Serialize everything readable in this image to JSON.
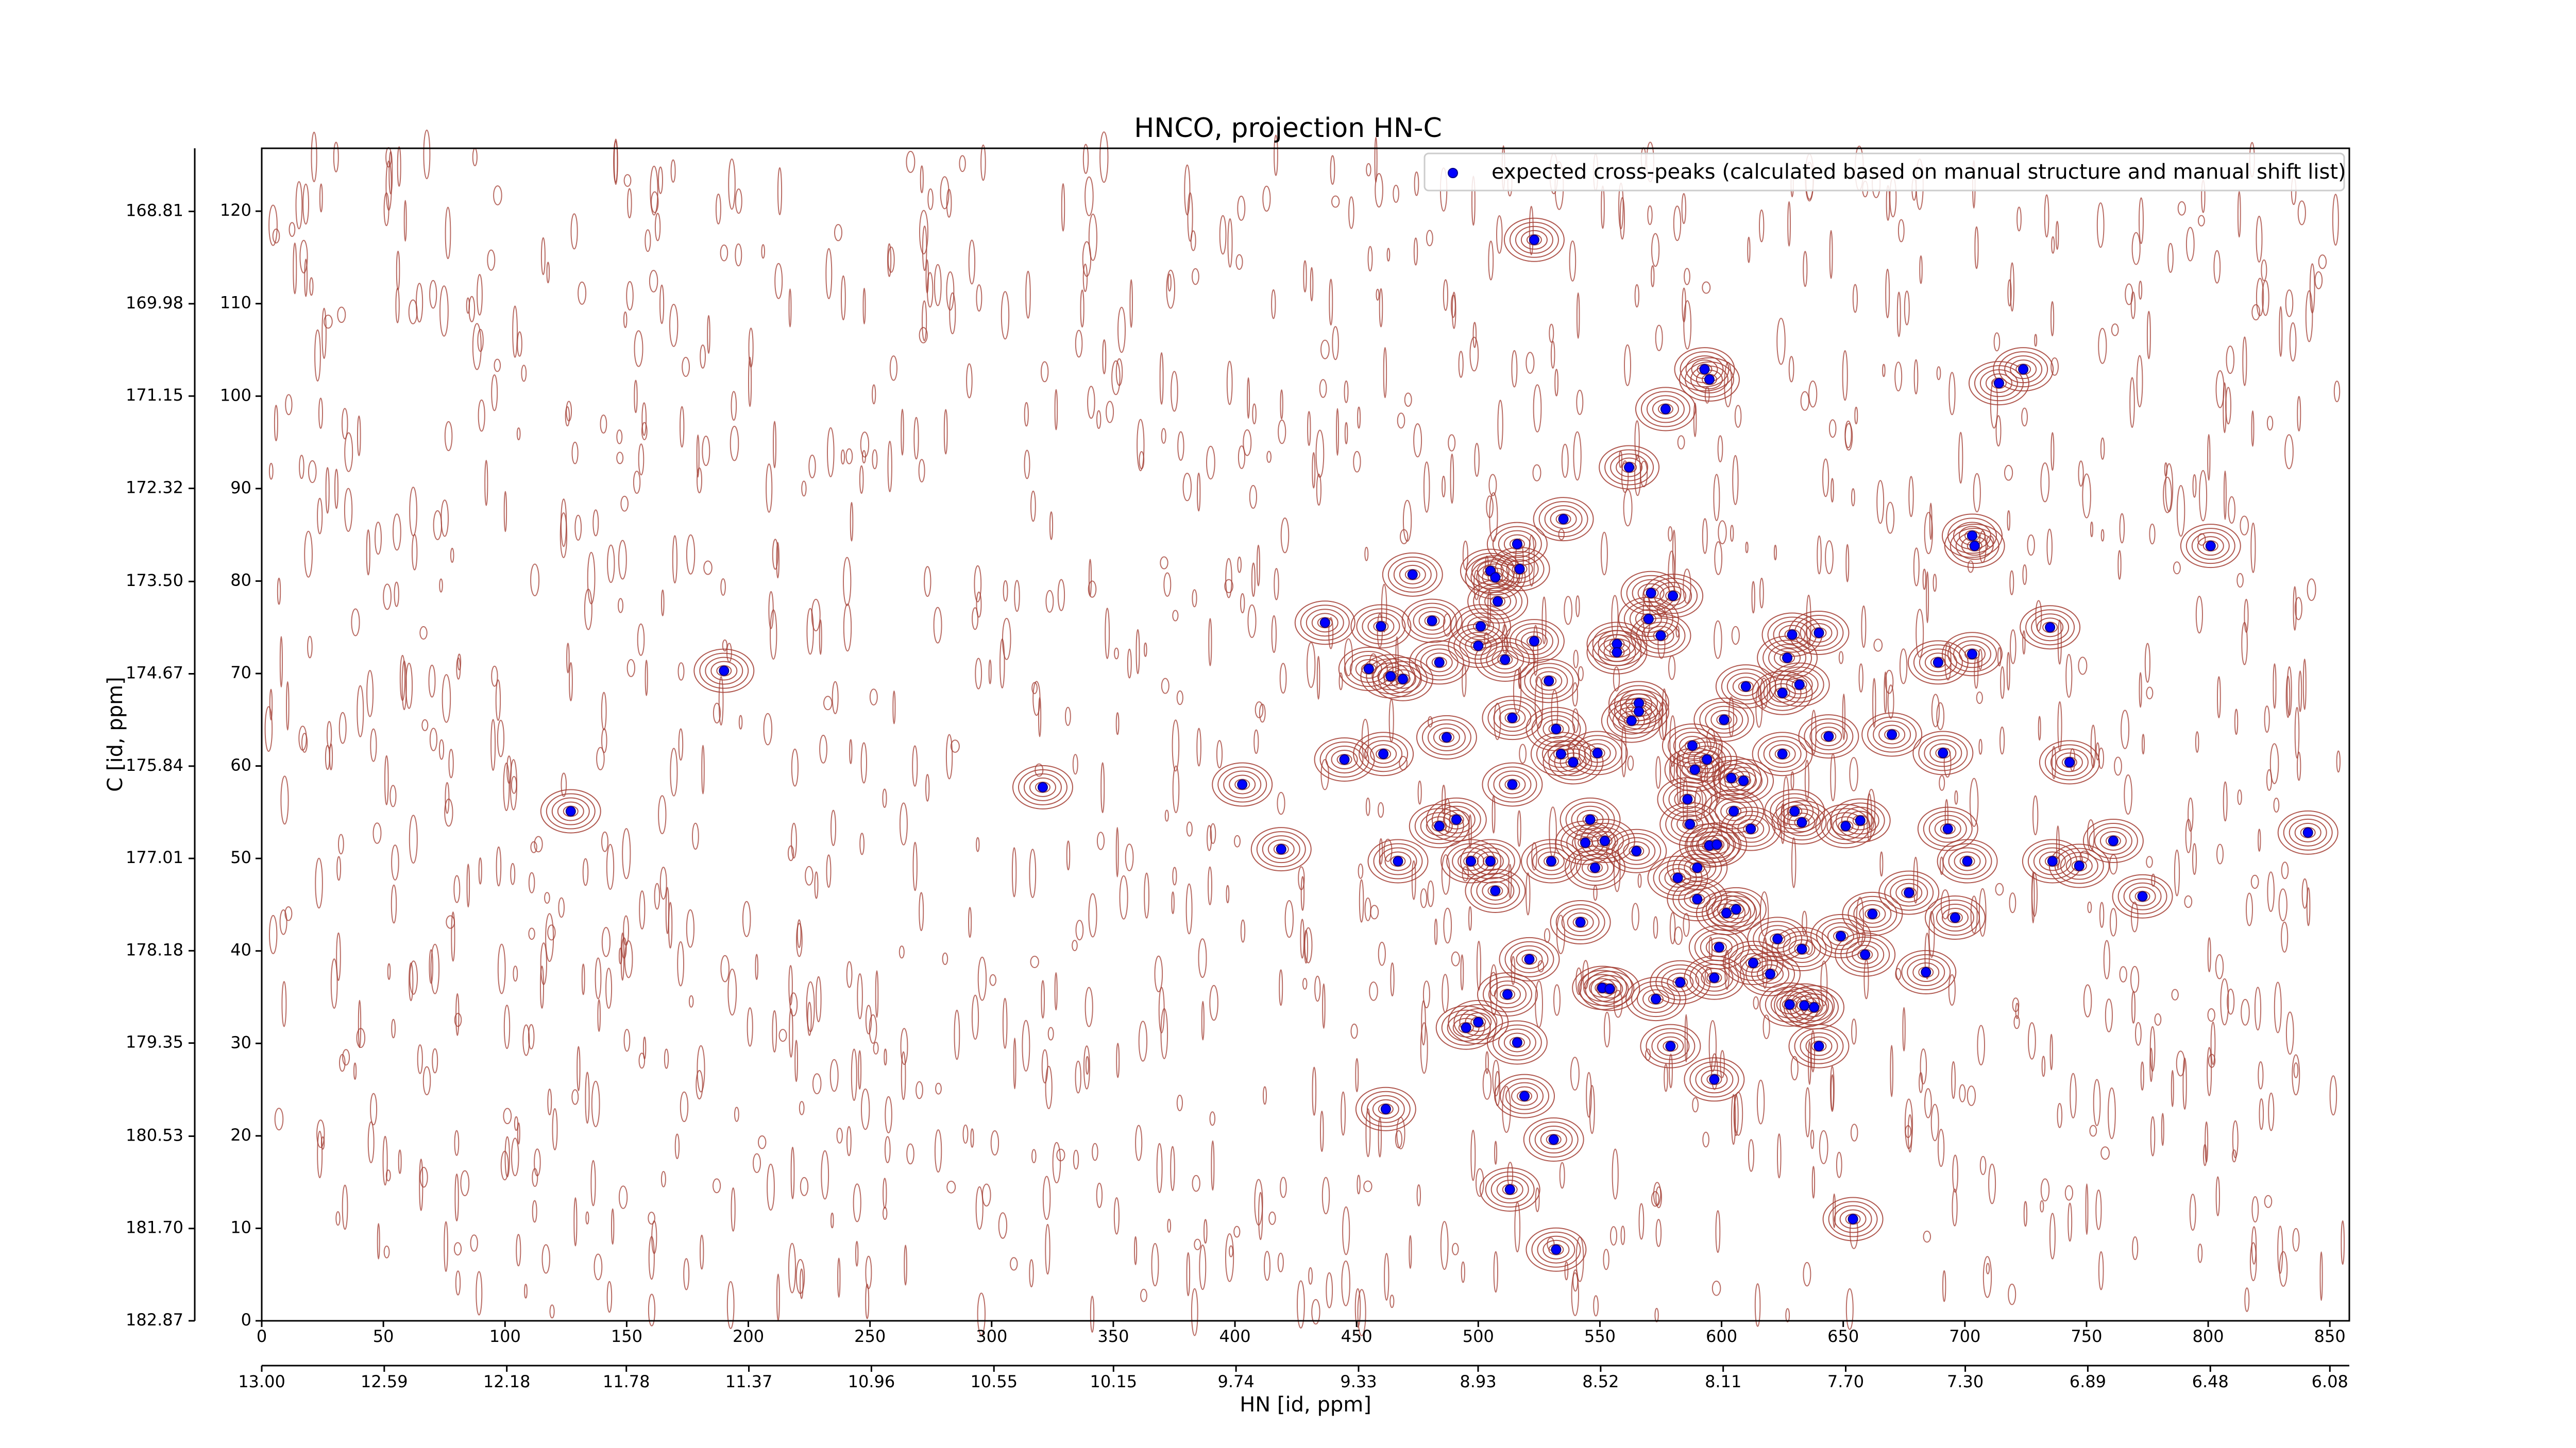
{
  "chart_data": {
    "type": "scatter",
    "title": "HNCO, projection HN-C",
    "x_label": "HN [id, ppm]",
    "y_label": "C [id, ppm]",
    "xlim": [
      0,
      858
    ],
    "ylim": [
      0,
      126.8
    ],
    "xticks": [
      0,
      50,
      100,
      150,
      200,
      250,
      300,
      350,
      400,
      450,
      500,
      550,
      600,
      650,
      700,
      750,
      800,
      850
    ],
    "yticks": [
      0,
      10,
      20,
      30,
      40,
      50,
      60,
      70,
      80,
      90,
      100,
      110,
      120
    ],
    "x2lim": [
      13.0,
      6.015
    ],
    "x2ticks": [
      {
        "value": 13.0,
        "label": "13.00"
      },
      12.59,
      12.18,
      11.78,
      11.37,
      10.96,
      10.55,
      10.15,
      9.74,
      9.33,
      8.93,
      8.52,
      8.11,
      {
        "value": 7.7,
        "label": "7.70"
      },
      {
        "value": 7.3,
        "label": "7.30"
      },
      6.89,
      6.48,
      6.08
    ],
    "y2lim": [
      182.87,
      168.01
    ],
    "y2ticks": [
      182.87,
      {
        "value": 181.7,
        "label": "181.70"
      },
      180.53,
      179.35,
      178.18,
      177.01,
      175.84,
      174.67,
      {
        "value": 173.5,
        "label": "173.50"
      },
      172.32,
      171.15,
      169.98,
      168.81
    ],
    "legend": "upper right",
    "contour_color": "#a23b30",
    "series": [
      {
        "name": "expected cross-peaks (calculated based on manual structure and manual shift list)",
        "color": "#0000ff",
        "x": [
          127,
          190,
          321,
          403,
          419,
          437,
          445,
          455,
          460,
          461,
          464,
          467,
          469,
          473,
          462,
          481,
          484,
          484,
          487,
          491,
          495,
          497,
          500,
          500,
          501,
          505,
          505,
          507,
          507,
          508,
          511,
          512,
          513,
          514,
          514,
          516,
          516,
          517,
          519,
          521,
          523,
          523,
          529,
          530,
          531,
          532,
          532,
          534,
          535,
          539,
          542,
          544,
          546,
          548,
          549,
          551,
          552,
          554,
          557,
          557,
          562,
          563,
          565,
          566,
          566,
          570,
          571,
          573,
          575,
          577,
          579,
          580,
          582,
          583,
          586,
          587,
          588,
          589,
          590,
          590,
          593,
          594,
          595,
          595,
          597,
          597,
          598,
          599,
          601,
          602,
          604,
          605,
          606,
          609,
          610,
          612,
          613,
          620,
          623,
          625,
          625,
          627,
          628,
          629,
          630,
          632,
          633,
          633,
          634,
          638,
          640,
          640,
          644,
          649,
          651,
          654,
          657,
          659,
          662,
          670,
          677,
          684,
          689,
          691,
          693,
          696,
          701,
          703,
          703,
          704,
          714,
          724,
          735,
          736,
          743,
          747,
          761,
          773,
          801,
          841
        ],
        "values": [
          55.1,
          70.3,
          57.7,
          58.0,
          51.0,
          75.5,
          60.7,
          70.5,
          75.1,
          61.3,
          69.7,
          49.7,
          69.4,
          80.7,
          22.9,
          75.7,
          71.2,
          53.5,
          63.1,
          54.2,
          31.7,
          49.7,
          32.3,
          73.0,
          75.1,
          49.7,
          81.1,
          80.4,
          46.5,
          77.8,
          71.5,
          35.3,
          14.2,
          65.2,
          58.0,
          84.0,
          30.1,
          81.3,
          24.3,
          39.1,
          116.9,
          73.5,
          69.2,
          49.7,
          19.6,
          64.0,
          7.7,
          61.3,
          86.7,
          60.4,
          43.1,
          51.7,
          54.2,
          49.0,
          61.4,
          36.0,
          51.9,
          35.9,
          73.2,
          72.3,
          92.3,
          64.9,
          50.8,
          66.8,
          65.9,
          75.9,
          78.7,
          34.8,
          74.1,
          98.6,
          29.7,
          78.4,
          47.9,
          36.6,
          56.4,
          53.7,
          62.2,
          59.6,
          45.6,
          49.0,
          102.9,
          60.7,
          101.8,
          51.4,
          37.1,
          26.1,
          51.5,
          40.4,
          65.0,
          44.1,
          58.7,
          55.1,
          44.5,
          58.4,
          68.6,
          53.2,
          38.7,
          37.5,
          41.3,
          61.3,
          67.9,
          71.7,
          34.2,
          74.2,
          55.1,
          68.8,
          40.2,
          53.9,
          34.1,
          33.9,
          74.4,
          29.7,
          63.2,
          41.6,
          53.5,
          11.0,
          54.1,
          39.6,
          44.0,
          63.4,
          46.3,
          37.7,
          71.2,
          61.4,
          53.2,
          43.6,
          49.7,
          72.1,
          84.9,
          83.8,
          101.4,
          102.9,
          75.0,
          49.7,
          60.4,
          49.2,
          51.9,
          45.9,
          83.8,
          52.8
        ]
      }
    ]
  }
}
